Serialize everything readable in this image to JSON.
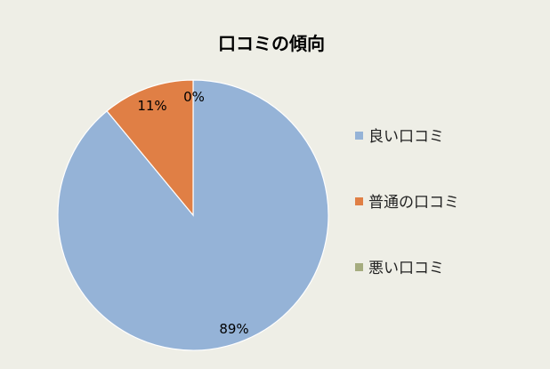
{
  "chart_data": {
    "type": "pie",
    "title": "口コミの傾向",
    "legend_position": "right",
    "categories": [
      "良い口コミ",
      "普通の口コミ",
      "悪い口コミ"
    ],
    "values": [
      89,
      11,
      0
    ],
    "data_labels": [
      "89%",
      "11%",
      "0%"
    ],
    "colors": [
      "#95b3d7",
      "#e07f45",
      "#a5ac7f"
    ]
  }
}
